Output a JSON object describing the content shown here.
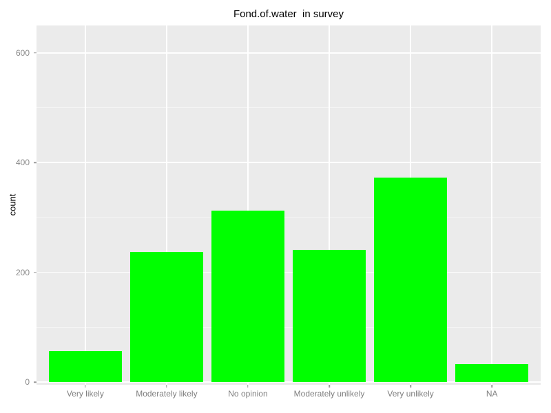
{
  "chart_data": {
    "type": "bar",
    "title": "Fond.of.water  in survey",
    "xlabel": "",
    "ylabel": "count",
    "categories": [
      "Very likely",
      "Moderately likely",
      "No opinion",
      "Moderately unlikely",
      "Very unlikely",
      "NA"
    ],
    "values": [
      57,
      237,
      312,
      241,
      373,
      33
    ],
    "ylim": [
      -5,
      650
    ],
    "yticks": [
      0,
      200,
      400,
      600
    ],
    "yticks_minor": [
      100,
      300,
      500
    ],
    "grid": true,
    "legend_position": "none",
    "colors": {
      "bar_fill": "#00FF00",
      "panel_background": "#EBEBEB",
      "grid_major": "#FFFFFF",
      "grid_minor": "rgba(255,255,255,0.55)",
      "axis_text": "#7F7F7F",
      "tick_mark": "#999999",
      "title_text": "#000000"
    }
  }
}
